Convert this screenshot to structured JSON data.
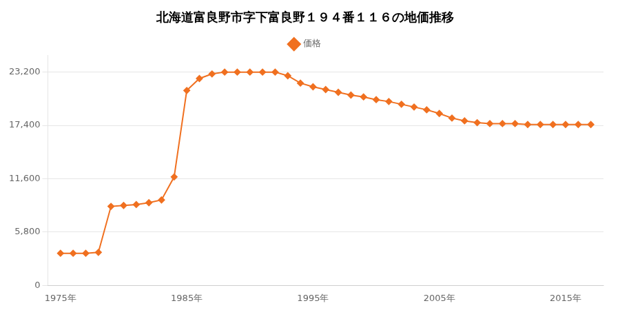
{
  "chart_data": {
    "type": "line",
    "title": "北海道富良野市字下富良野１９４番１１６の地価推移",
    "x": [
      1975,
      1976,
      1977,
      1978,
      1979,
      1980,
      1981,
      1982,
      1983,
      1984,
      1985,
      1986,
      1987,
      1988,
      1989,
      1990,
      1991,
      1992,
      1993,
      1994,
      1995,
      1996,
      1997,
      1998,
      1999,
      2000,
      2001,
      2002,
      2003,
      2004,
      2005,
      2006,
      2007,
      2008,
      2009,
      2010,
      2011,
      2012,
      2013,
      2014,
      2015,
      2016,
      2017
    ],
    "series": [
      {
        "name": "価格",
        "color": "#f07020",
        "marker": "diamond",
        "line_style": "solid",
        "values": [
          3500,
          3500,
          3500,
          3600,
          8600,
          8700,
          8800,
          9000,
          9300,
          11800,
          21200,
          22500,
          23000,
          23200,
          23200,
          23200,
          23200,
          23200,
          22800,
          22000,
          21600,
          21300,
          21000,
          20700,
          20500,
          20200,
          20000,
          19700,
          19400,
          19100,
          18700,
          18200,
          17900,
          17700,
          17600,
          17600,
          17600,
          17500,
          17500,
          17500,
          17500,
          17500,
          17500
        ]
      }
    ],
    "xlim": [
      1974,
      2018
    ],
    "xticks": [
      {
        "value": 1975,
        "label": "1975年"
      },
      {
        "value": 1985,
        "label": "1985年"
      },
      {
        "value": 1995,
        "label": "1995年"
      },
      {
        "value": 2005,
        "label": "2005年"
      },
      {
        "value": 2015,
        "label": "2015年"
      }
    ],
    "ylim": [
      0,
      25000
    ],
    "yticks": [
      0,
      {
        "value": 5800,
        "label": "5,800"
      },
      {
        "value": 11600,
        "label": "11,600"
      },
      {
        "value": 17400,
        "label": "17,400"
      },
      {
        "value": 23200,
        "label": "23,200"
      }
    ],
    "grid": "y",
    "legend": "top"
  }
}
